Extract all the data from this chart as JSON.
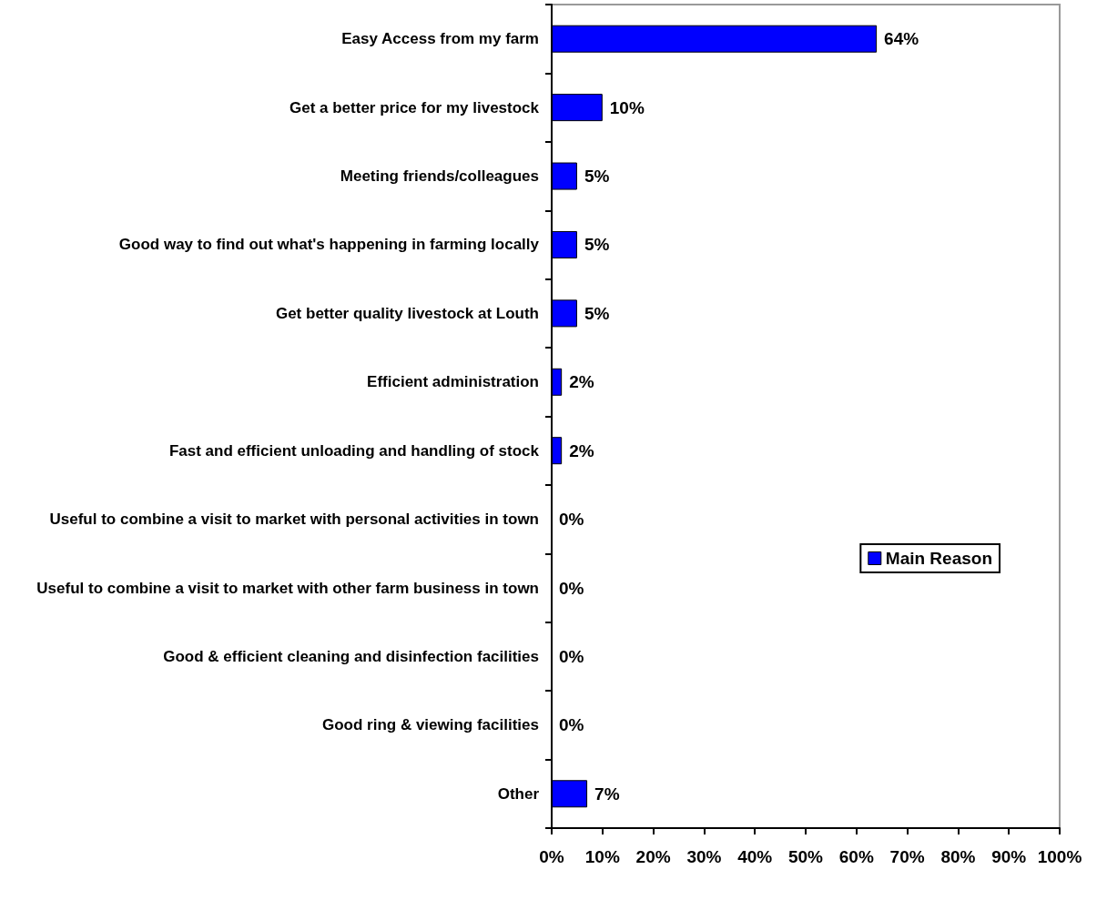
{
  "chart_data": {
    "type": "bar",
    "orientation": "horizontal",
    "categories": [
      "Easy Access from my farm",
      "Get a better price for my livestock",
      "Meeting friends/colleagues",
      "Good way to find out what's happening in farming locally",
      "Get better quality livestock at Louth",
      "Efficient administration",
      "Fast and efficient unloading and handling of stock",
      "Useful to combine a visit to market with personal activities in town",
      "Useful to combine a visit to market with other farm business in town",
      "Good & efficient cleaning and disinfection facilities",
      "Good ring & viewing facilities",
      "Other"
    ],
    "series": [
      {
        "name": "Main Reason",
        "color": "#0000ff",
        "values": [
          64,
          10,
          5,
          5,
          5,
          2,
          2,
          0,
          0,
          0,
          0,
          7
        ],
        "value_labels": [
          "64%",
          "10%",
          "5%",
          "5%",
          "5%",
          "2%",
          "2%",
          "0%",
          "0%",
          "0%",
          "0%",
          "7%"
        ]
      }
    ],
    "xlim": [
      0,
      100
    ],
    "xticks": [
      {
        "value": 0,
        "label": "0%"
      },
      {
        "value": 10,
        "label": "10%"
      },
      {
        "value": 20,
        "label": "20%"
      },
      {
        "value": 30,
        "label": "30%"
      },
      {
        "value": 40,
        "label": "40%"
      },
      {
        "value": 50,
        "label": "50%"
      },
      {
        "value": 60,
        "label": "60%"
      },
      {
        "value": 70,
        "label": "70%"
      },
      {
        "value": 80,
        "label": "80%"
      },
      {
        "value": 90,
        "label": "90%"
      },
      {
        "value": 100,
        "label": "100%"
      }
    ],
    "grid": false,
    "legend": "right"
  }
}
